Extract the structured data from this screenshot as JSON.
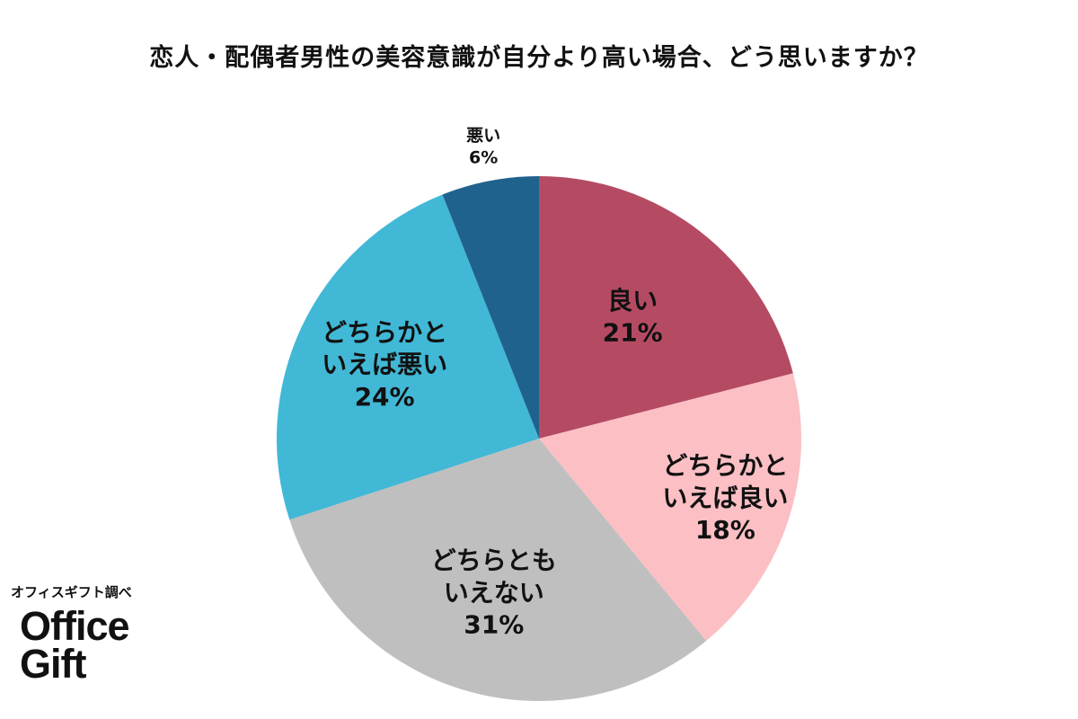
{
  "chart_data": {
    "type": "pie",
    "title": "恋人・配偶者男性の美容意識が自分より高い場合、どう思いますか？",
    "start": "top, clockwise",
    "slices": [
      {
        "label": [
          "良い"
        ],
        "value": 21,
        "value_text": "21%",
        "color": "#b54b63"
      },
      {
        "label": [
          "どちらかと",
          "いえば良い"
        ],
        "value": 18,
        "value_text": "18%",
        "color": "#fbbfc4"
      },
      {
        "label": [
          "どちらとも",
          "いえない"
        ],
        "value": 31,
        "value_text": "31%",
        "color": "#bfbfbf"
      },
      {
        "label": [
          "どちらかと",
          "いえば悪い"
        ],
        "value": 24,
        "value_text": "24%",
        "color": "#41b8d6"
      },
      {
        "label": [
          "悪い"
        ],
        "value": 6,
        "value_text": "6%",
        "color": "#20628e"
      }
    ]
  },
  "credit": {
    "source": "オフィスギフト調べ",
    "brand_line1": "Office",
    "brand_line2": "Gift"
  }
}
